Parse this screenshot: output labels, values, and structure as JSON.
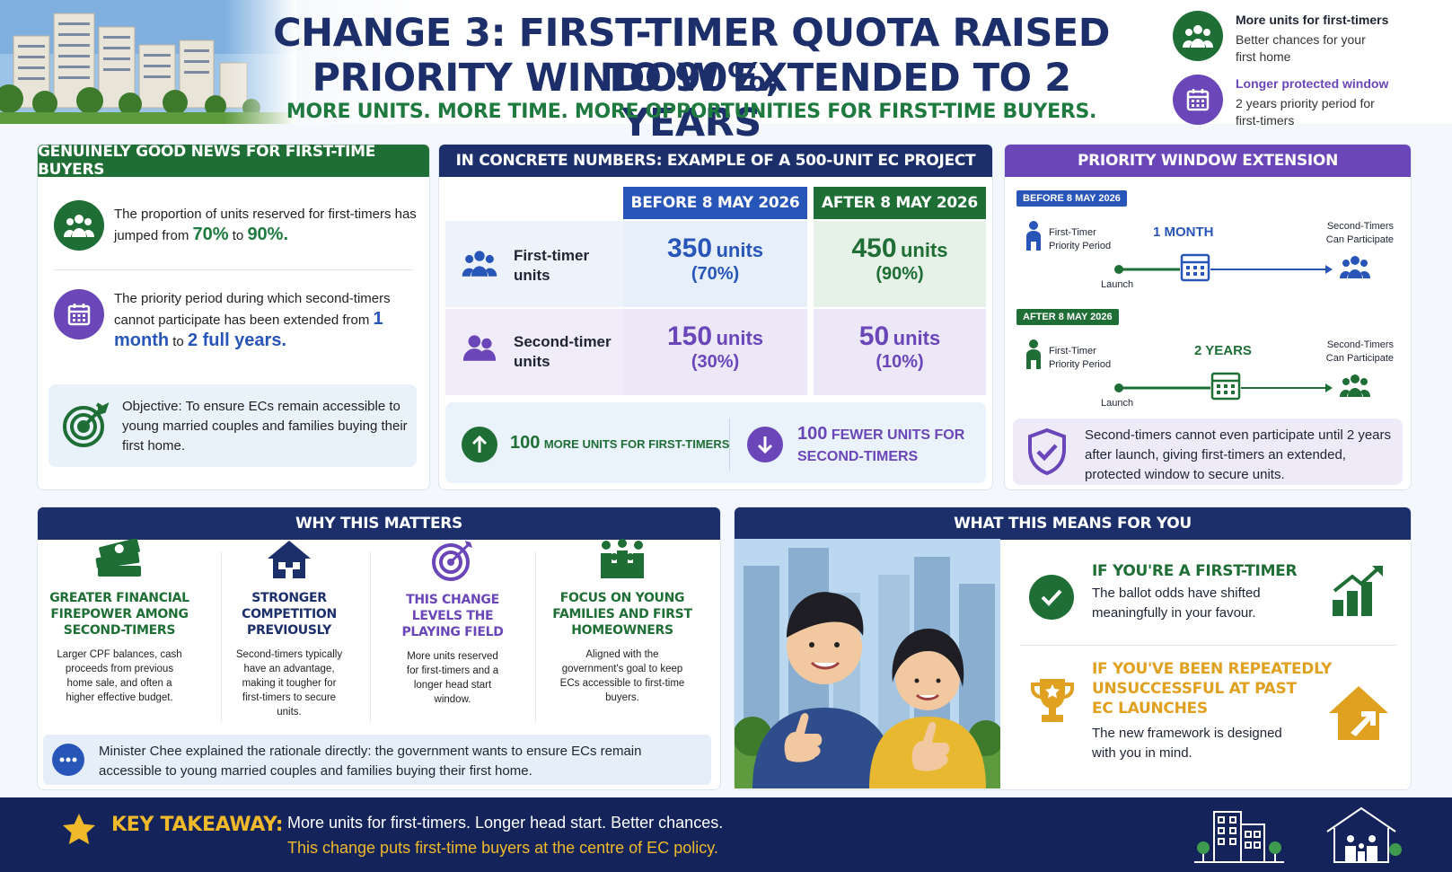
{
  "header": {
    "title_line1": "CHANGE 3: FIRST-TIMER QUOTA RAISED TO 90%,",
    "title_line2": "PRIORITY WINDOW EXTENDED TO 2 YEARS",
    "subtitle": "MORE UNITS. MORE TIME. MORE OPPORTUNITIES FOR FIRST-TIME BUYERS.",
    "side_items": [
      {
        "icon": "family-icon",
        "title": "More units for first-timers",
        "line1": "Better chances for your",
        "line2": "first home"
      },
      {
        "icon": "calendar-icon",
        "title": "Longer protected window",
        "line1": "2 years priority period for",
        "line2": "first-timers"
      }
    ]
  },
  "good_news": {
    "heading": "GENUINELY GOOD NEWS FOR FIRST-TIME BUYERS",
    "item1_text": "The proportion of units reserved for first-timers has jumped from",
    "item1_from": "70%",
    "item1_to_word": "to",
    "item1_to": "90%.",
    "item2_text": "The priority period during which second-timers cannot participate has been extended from",
    "item2_from": "1 month",
    "item2_to_word": "to",
    "item2_to": "2 full years.",
    "objective": "Objective: To ensure ECs remain accessible to young married couples and families buying their first home."
  },
  "numbers": {
    "heading": "IN CONCRETE NUMBERS: EXAMPLE OF A 500-UNIT EC PROJECT",
    "col_before": "BEFORE 8 MAY 2026",
    "col_after": "AFTER 8 MAY 2026",
    "row1_label": "First-timer units",
    "row1_before_num": "350",
    "row1_before_pct": "(70%)",
    "row1_after_num": "450",
    "row1_after_pct": "(90%)",
    "row2_label": "Second-timer units",
    "row2_before_num": "150",
    "row2_before_pct": "(30%)",
    "row2_after_num": "50",
    "row2_after_pct": "(10%)",
    "unit_word": "units",
    "more_num": "100",
    "more_text": "MORE UNITS FOR FIRST-TIMERS",
    "fewer_num": "100",
    "fewer_text1": "FEWER UNITS FOR",
    "fewer_text2": "SECOND-TIMERS"
  },
  "priority": {
    "heading": "PRIORITY WINDOW EXTENSION",
    "before_tag": "BEFORE 8 MAY 2026",
    "after_tag": "AFTER 8 MAY 2026",
    "ft_label1": "First-Timer",
    "ft_label2": "Priority Period",
    "before_duration": "1 MONTH",
    "after_duration": "2 YEARS",
    "st_label1": "Second-Timers",
    "st_label2": "Can Participate",
    "launch": "Launch",
    "note": "Second-timers cannot even participate until 2 years after launch, giving first-timers an extended, protected window to secure units."
  },
  "why": {
    "heading": "WHY THIS MATTERS",
    "cols": [
      {
        "title": "GREATER FINANCIAL FIREPOWER AMONG SECOND-TIMERS",
        "desc": "Larger CPF balances, cash proceeds from previous home sale, and often a higher effective budget."
      },
      {
        "title": "STRONGER COMPETITION PREVIOUSLY",
        "desc": "Second-timers typically have an advantage, making it tougher for first-timers to secure units."
      },
      {
        "title": "THIS CHANGE LEVELS THE PLAYING FIELD",
        "desc": "More units reserved for first-timers and a longer head start window."
      },
      {
        "title": "FOCUS ON YOUNG FAMILIES AND FIRST HOMEOWNERS",
        "desc": "Aligned with the government's goal to keep ECs accessible to first-time buyers."
      }
    ],
    "quote": "Minister Chee explained the rationale directly: the government wants to ensure ECs remain accessible to young married couples and families buying their first home."
  },
  "means": {
    "heading": "WHAT THIS MEANS FOR YOU",
    "ft_title": "IF YOU'RE A FIRST-TIMER",
    "ft_text": "The ballot odds have shifted meaningfully in your favour.",
    "rep_title1": "IF YOU'VE BEEN REPEATEDLY",
    "rep_title2": "UNSUCCESSFUL AT PAST",
    "rep_title3": "EC LAUNCHES",
    "rep_text": "The new framework is designed with you in mind."
  },
  "footer": {
    "label": "KEY TAKEAWAY:",
    "line1": "More units for first-timers. Longer head start. Better chances.",
    "line2": "This change puts first-time buyers at the centre of EC policy."
  },
  "colors": {
    "navy": "#1c2f6b",
    "green": "#1e6e35",
    "purple": "#6a46b8",
    "blue": "#2855b8",
    "orange": "#e0a020"
  }
}
